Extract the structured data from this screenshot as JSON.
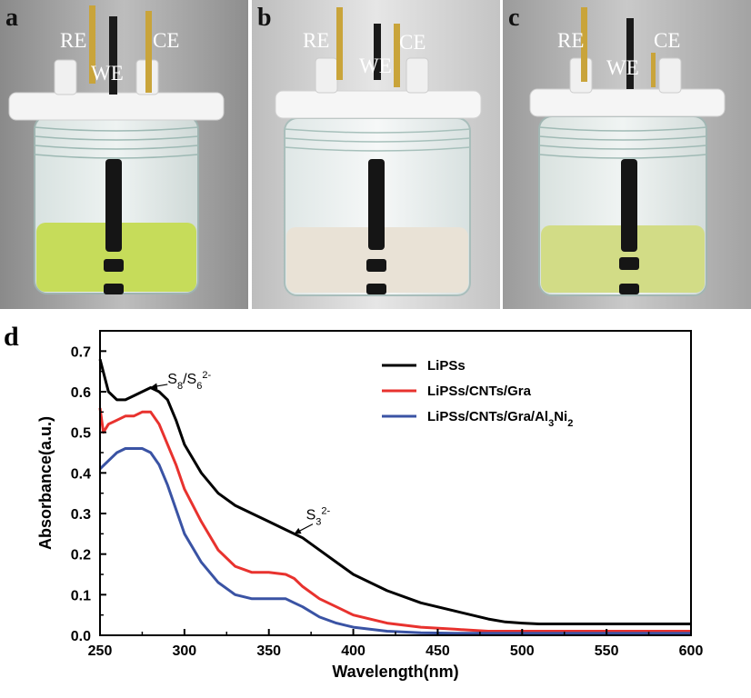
{
  "photos": [
    {
      "id": "a",
      "letter": "a",
      "labels": {
        "re": "RE",
        "we": "WE",
        "ce": "CE"
      },
      "solution_color": "#c6dc5a"
    },
    {
      "id": "b",
      "letter": "b",
      "labels": {
        "re": "RE",
        "we": "WE",
        "ce": "CE"
      },
      "solution_color": "#e9e2d6"
    },
    {
      "id": "c",
      "letter": "c",
      "labels": {
        "re": "RE",
        "we": "WE",
        "ce": "CE"
      },
      "solution_color": "#d2dc86"
    }
  ],
  "chart_letter": "d",
  "chart_data": {
    "type": "line",
    "title": "",
    "xlabel": "Wavelength(nm)",
    "ylabel": "Absorbance(a.u.)",
    "xlim": [
      250,
      600
    ],
    "ylim": [
      0.0,
      0.75
    ],
    "xticks": [
      250,
      300,
      350,
      400,
      450,
      500,
      550,
      600
    ],
    "yticks": [
      0.0,
      0.1,
      0.2,
      0.3,
      0.4,
      0.5,
      0.6,
      0.7
    ],
    "ytick_labels": [
      "0.0",
      "0.1",
      "0.2",
      "0.3",
      "0.4",
      "0.5",
      "0.6",
      "0.7"
    ],
    "legend_position": "top-right",
    "series": [
      {
        "name": "LiPSs",
        "color": "#000000",
        "x": [
          250,
          255,
          260,
          265,
          270,
          275,
          280,
          285,
          290,
          295,
          300,
          310,
          320,
          330,
          340,
          350,
          360,
          370,
          380,
          390,
          400,
          420,
          440,
          460,
          480,
          490,
          500,
          510,
          520,
          550,
          600
        ],
        "y": [
          0.68,
          0.6,
          0.58,
          0.58,
          0.59,
          0.6,
          0.61,
          0.6,
          0.58,
          0.53,
          0.47,
          0.4,
          0.35,
          0.32,
          0.3,
          0.28,
          0.26,
          0.24,
          0.21,
          0.18,
          0.15,
          0.11,
          0.08,
          0.06,
          0.04,
          0.033,
          0.03,
          0.028,
          0.028,
          0.028,
          0.028
        ]
      },
      {
        "name": "LiPSs/CNTs/Gra",
        "color": "#e8322e",
        "x": [
          250,
          252,
          255,
          260,
          265,
          270,
          275,
          280,
          285,
          290,
          295,
          300,
          310,
          320,
          330,
          340,
          350,
          360,
          365,
          370,
          380,
          390,
          400,
          420,
          440,
          460,
          480,
          500,
          550,
          600
        ],
        "y": [
          0.56,
          0.5,
          0.52,
          0.53,
          0.54,
          0.54,
          0.55,
          0.55,
          0.52,
          0.47,
          0.42,
          0.36,
          0.28,
          0.21,
          0.17,
          0.155,
          0.155,
          0.15,
          0.14,
          0.12,
          0.09,
          0.07,
          0.05,
          0.03,
          0.02,
          0.015,
          0.01,
          0.01,
          0.01,
          0.01
        ]
      },
      {
        "name": "LiPSs/CNTs/Gra/Al3Ni2",
        "legend_parts": [
          {
            "t": "LiPSs/CNTs/Gra/Al",
            "sub": false
          },
          {
            "t": "3",
            "sub": true
          },
          {
            "t": "Ni",
            "sub": false
          },
          {
            "t": "2",
            "sub": true
          }
        ],
        "color": "#3a53a4",
        "x": [
          250,
          255,
          260,
          265,
          270,
          275,
          280,
          285,
          290,
          295,
          300,
          310,
          320,
          330,
          340,
          350,
          360,
          365,
          370,
          380,
          390,
          400,
          420,
          440,
          460,
          480,
          500,
          550,
          600
        ],
        "y": [
          0.41,
          0.43,
          0.45,
          0.46,
          0.46,
          0.46,
          0.45,
          0.42,
          0.37,
          0.31,
          0.25,
          0.18,
          0.13,
          0.1,
          0.09,
          0.09,
          0.09,
          0.08,
          0.07,
          0.045,
          0.03,
          0.02,
          0.01,
          0.006,
          0.005,
          0.005,
          0.005,
          0.005,
          0.005
        ]
      }
    ],
    "annotations": [
      {
        "id": "s8s6",
        "parts": [
          {
            "t": "S",
            "pos": "base"
          },
          {
            "t": "8",
            "pos": "sub"
          },
          {
            "t": "/S",
            "pos": "base"
          },
          {
            "t": "6",
            "pos": "sub"
          },
          {
            "t": "2-",
            "pos": "sup"
          }
        ],
        "text_x": 290,
        "text_y": 0.62,
        "arrow_from": [
          290,
          0.618
        ],
        "arrow_to": [
          280,
          0.611
        ]
      },
      {
        "id": "s3",
        "parts": [
          {
            "t": "S",
            "pos": "base"
          },
          {
            "t": "3",
            "pos": "sub"
          },
          {
            "t": "2-",
            "pos": "sup"
          }
        ],
        "text_x": 372,
        "text_y": 0.285,
        "arrow_from": [
          376,
          0.274
        ],
        "arrow_to": [
          365,
          0.25
        ]
      }
    ]
  }
}
